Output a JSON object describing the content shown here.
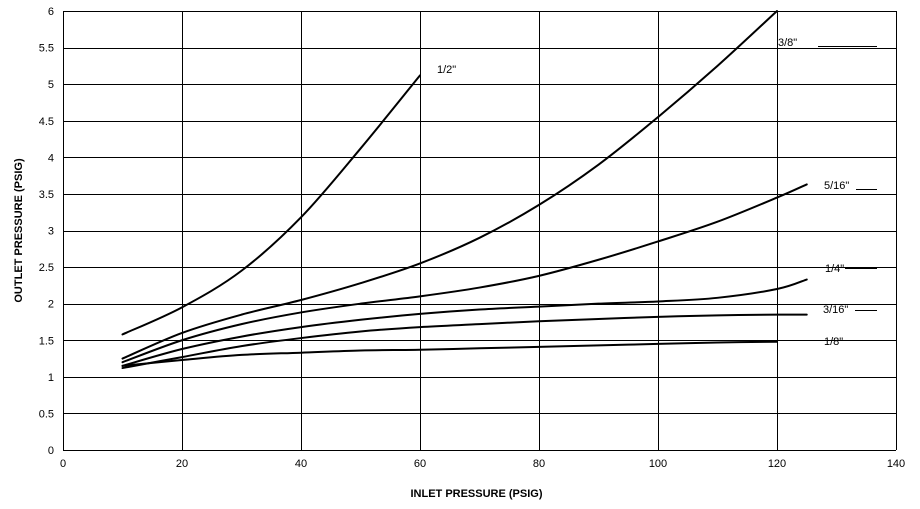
{
  "chart_data": {
    "type": "line",
    "title": "",
    "xlabel": "INLET PRESSURE (PSIG)",
    "ylabel": "OUTLET PRESSURE (PSIG)",
    "xlim": [
      0,
      140
    ],
    "ylim": [
      0,
      6
    ],
    "grid": true,
    "legend": "none",
    "line_color": "#000000",
    "x_ticks": [
      "0",
      "20",
      "40",
      "60",
      "80",
      "100",
      "120",
      "140"
    ],
    "y_ticks": [
      "0",
      "0.5",
      "1",
      "1.5",
      "2",
      "2.5",
      "3",
      "3.5",
      "4",
      "4.5",
      "5",
      "5.5",
      "6"
    ],
    "series": [
      {
        "name": "1/2\"",
        "x": [
          10,
          20,
          30,
          40,
          50,
          60
        ],
        "y": [
          1.58,
          1.95,
          2.45,
          3.18,
          4.12,
          5.12
        ]
      },
      {
        "name": "3/8\"",
        "x": [
          10,
          20,
          30,
          40,
          50,
          60,
          70,
          80,
          90,
          100,
          110,
          120
        ],
        "y": [
          1.25,
          1.6,
          1.85,
          2.05,
          2.28,
          2.55,
          2.9,
          3.35,
          3.9,
          4.55,
          5.25,
          6.0
        ]
      },
      {
        "name": "5/16\"",
        "x": [
          10,
          20,
          30,
          40,
          50,
          60,
          70,
          80,
          90,
          100,
          110,
          120,
          125
        ],
        "y": [
          1.2,
          1.5,
          1.72,
          1.88,
          2.0,
          2.1,
          2.22,
          2.38,
          2.6,
          2.85,
          3.12,
          3.45,
          3.63
        ]
      },
      {
        "name": "1/4\"",
        "x": [
          10,
          20,
          30,
          40,
          50,
          60,
          70,
          80,
          90,
          100,
          110,
          120,
          125
        ],
        "y": [
          1.15,
          1.38,
          1.55,
          1.68,
          1.78,
          1.86,
          1.92,
          1.96,
          2.0,
          2.03,
          2.08,
          2.2,
          2.33
        ]
      },
      {
        "name": "3/16\"",
        "x": [
          10,
          20,
          30,
          40,
          50,
          60,
          70,
          80,
          90,
          100,
          110,
          120,
          125
        ],
        "y": [
          1.12,
          1.27,
          1.42,
          1.53,
          1.62,
          1.68,
          1.72,
          1.76,
          1.79,
          1.82,
          1.84,
          1.85,
          1.85
        ]
      },
      {
        "name": "1/8\"",
        "x": [
          10,
          20,
          30,
          40,
          50,
          60,
          70,
          80,
          90,
          100,
          110,
          120
        ],
        "y": [
          1.15,
          1.23,
          1.3,
          1.33,
          1.36,
          1.37,
          1.39,
          1.41,
          1.43,
          1.45,
          1.47,
          1.48
        ]
      }
    ]
  }
}
